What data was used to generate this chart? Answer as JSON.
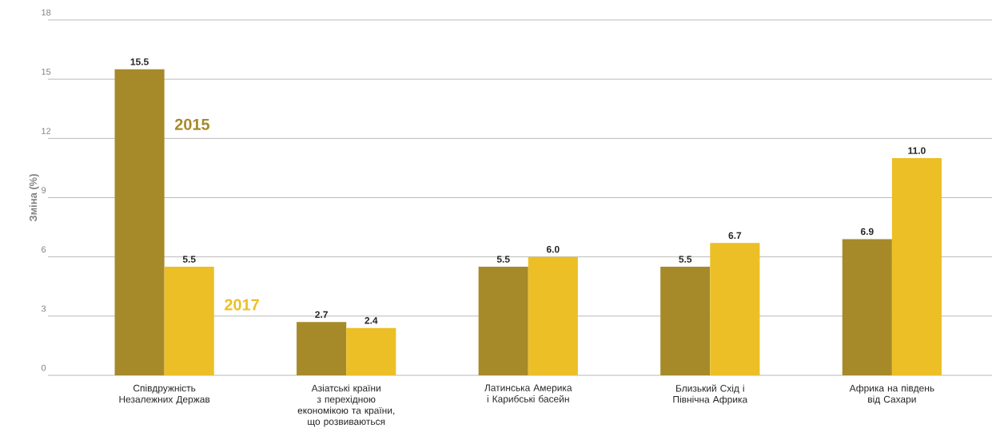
{
  "chart_data": {
    "type": "bar",
    "ylabel": "Зміна (%)",
    "categories": [
      "Співдружність Незалежних Держав",
      "Азіатські країни з перехідною економікою та країни, що розвиваються",
      "Латинська Америка і Карибські басейн",
      "Близький Схід і Північна Африка",
      "Африка на південь від Сахари"
    ],
    "series": [
      {
        "name": "2015",
        "color": "#a68a2a",
        "values": [
          15.5,
          2.7,
          5.5,
          5.5,
          6.9
        ],
        "value_labels": [
          "15.5",
          "2.7",
          "5.5",
          "5.5",
          "6.9"
        ]
      },
      {
        "name": "2017",
        "color": "#ecbf26",
        "values": [
          5.5,
          2.4,
          6.0,
          6.7,
          11.0
        ],
        "value_labels": [
          "5.5",
          "2.4",
          "6.0",
          "6.7",
          "11.0"
        ]
      }
    ],
    "ylim": [
      0,
      18
    ],
    "yticks": [
      0,
      3,
      6,
      9,
      12,
      15,
      18
    ],
    "grid": "y"
  }
}
